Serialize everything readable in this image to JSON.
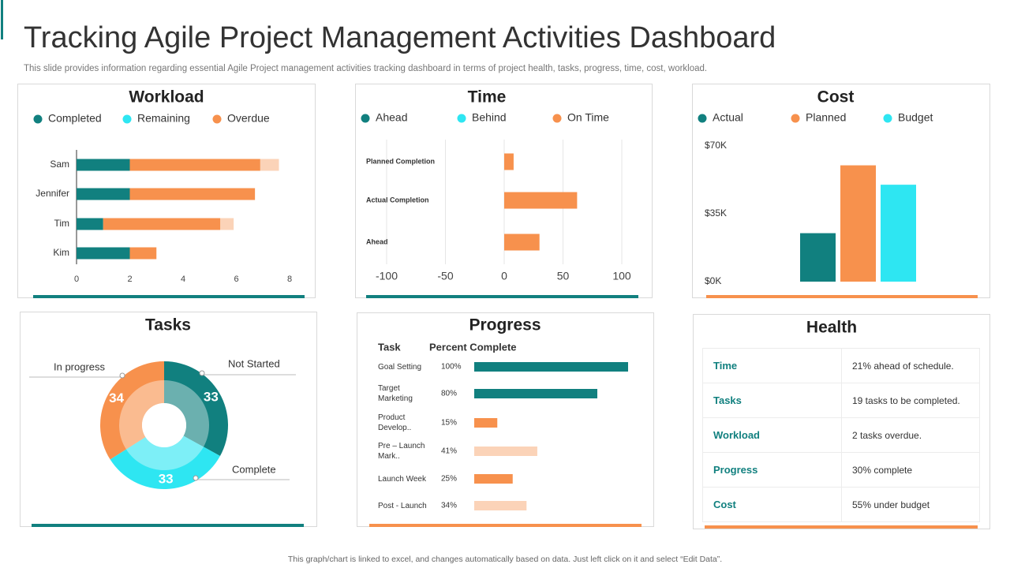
{
  "header": {
    "title": "Tracking Agile Project Management Activities Dashboard",
    "subtitle": "This slide provides information regarding essential Agile Project management activities tracking dashboard in terms of project health, tasks, progress, time, cost, workload."
  },
  "chart_data": [
    {
      "type": "bar",
      "orientation": "horizontal",
      "stacked": true,
      "title": "Workload",
      "categories": [
        "Sam",
        "Jennifer",
        "Tim",
        "Kim"
      ],
      "series": [
        {
          "name": "Completed",
          "color": "#11807f",
          "values": [
            2,
            2,
            1,
            2
          ]
        },
        {
          "name": "Remaining",
          "color": "#fbd3b8",
          "legend_color": "#2ee6f2",
          "values": [
            0.7,
            0,
            0.5,
            0
          ]
        },
        {
          "name": "Overdue",
          "color": "#f7914d",
          "values": [
            4.9,
            4.7,
            4.4,
            1
          ]
        }
      ],
      "xlim": [
        0,
        8
      ],
      "xticks": [
        0,
        2,
        4,
        6,
        8
      ]
    },
    {
      "type": "bar",
      "orientation": "horizontal",
      "title": "Time",
      "categories": [
        "Planned Completion",
        "Actual  Completion",
        "Ahead"
      ],
      "series": [
        {
          "name": "Ahead",
          "color": "#11807f",
          "values": [
            null,
            null,
            null
          ]
        },
        {
          "name": "Behind",
          "color": "#2ee6f2",
          "values": [
            null,
            null,
            null
          ]
        },
        {
          "name": "On Time",
          "color": "#f7914d",
          "values": [
            8,
            62,
            30
          ]
        }
      ],
      "xlim": [
        -100,
        100
      ],
      "xticks": [
        -100,
        -50,
        0,
        50,
        100
      ],
      "grid": true
    },
    {
      "type": "bar",
      "orientation": "vertical",
      "title": "Cost",
      "categories": [
        null
      ],
      "series": [
        {
          "name": "Actual",
          "color": "#11807f",
          "values": [
            25000
          ]
        },
        {
          "name": "Planned",
          "color": "#f7914d",
          "values": [
            60000
          ]
        },
        {
          "name": "Budget",
          "color": "#2ee6f2",
          "values": [
            50000
          ]
        }
      ],
      "ylim": [
        0,
        70000
      ],
      "yticks": [
        {
          "value": 0,
          "label": "$0K"
        },
        {
          "value": 35000,
          "label": "$35K"
        },
        {
          "value": 70000,
          "label": "$70K"
        }
      ]
    },
    {
      "type": "pie",
      "donut": true,
      "title": "Tasks",
      "categories": [
        "Not Started",
        "Complete",
        "In progress"
      ],
      "values": [
        33,
        33,
        34
      ],
      "colors": [
        "#11807f",
        "#2ee6f2",
        "#f7914d"
      ]
    },
    {
      "type": "bar",
      "orientation": "horizontal",
      "title": "Progress",
      "column_headers": [
        "Task",
        "Percent Complete"
      ],
      "categories": [
        "Goal Setting",
        "Target Marketing",
        "Product Develop..",
        "Pre – Launch Mark..",
        "Launch Week",
        "Post - Launch"
      ],
      "values": [
        100,
        80,
        15,
        41,
        25,
        34
      ],
      "value_labels": [
        "100%",
        "80%",
        "15%",
        "41%",
        "25%",
        "34%"
      ],
      "colors": [
        "#11807f",
        "#11807f",
        "#f7914d",
        "#fbd3b8",
        "#f7914d",
        "#fbd3b8"
      ],
      "xlim": [
        0,
        100
      ]
    }
  ],
  "health": {
    "title": "Health",
    "rows": [
      [
        "Time",
        "21% ahead of schedule."
      ],
      [
        "Tasks",
        "19 tasks to be completed."
      ],
      [
        "Workload",
        "2 tasks overdue."
      ],
      [
        "Progress",
        "30% complete"
      ],
      [
        "Cost",
        "55% under budget"
      ]
    ]
  },
  "footer": "This graph/chart is linked to excel, and changes automatically based on data. Just left click on it and select “Edit Data”."
}
